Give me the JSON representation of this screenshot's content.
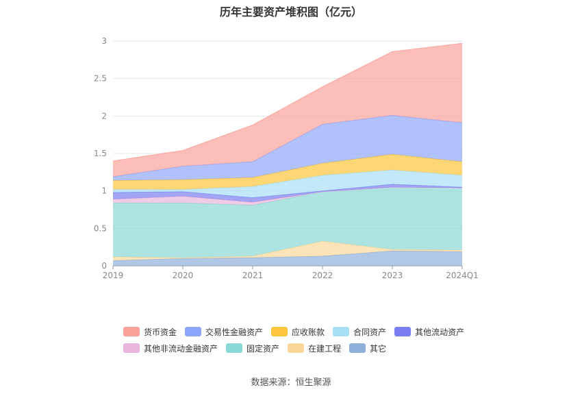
{
  "title": "历年主要资产堆积图（亿元）",
  "source": "数据来源：恒生聚源",
  "chart_data": {
    "type": "area",
    "stacked": true,
    "title": "历年主要资产堆积图（亿元）",
    "categories": [
      "2019",
      "2020",
      "2021",
      "2022",
      "2023",
      "2024Q1"
    ],
    "ylim": [
      0,
      3
    ],
    "yticks": [
      "0",
      "0.5",
      "1",
      "1.5",
      "2",
      "2.5",
      "3"
    ],
    "grid": true,
    "legend_position": "bottom",
    "series": [
      {
        "name": "其它",
        "color": "#8fb0db",
        "values": [
          0.07,
          0.1,
          0.11,
          0.13,
          0.2,
          0.19
        ]
      },
      {
        "name": "在建工程",
        "color": "#fbd89a",
        "values": [
          0.05,
          0.01,
          0.02,
          0.2,
          0.02,
          0.02
        ]
      },
      {
        "name": "固定资产",
        "color": "#8ad8d6",
        "values": [
          0.72,
          0.73,
          0.68,
          0.66,
          0.83,
          0.83
        ]
      },
      {
        "name": "其他非流动金融资产",
        "color": "#e8b6dc",
        "values": [
          0.05,
          0.09,
          0.04,
          0.0,
          0.0,
          0.0
        ]
      },
      {
        "name": "其他流动资产",
        "color": "#7b7ef0",
        "values": [
          0.09,
          0.06,
          0.06,
          0.01,
          0.04,
          0.01
        ]
      },
      {
        "name": "合同资产",
        "color": "#a9def7",
        "values": [
          0.04,
          0.03,
          0.15,
          0.21,
          0.19,
          0.16
        ]
      },
      {
        "name": "应收账款",
        "color": "#fcc53c",
        "values": [
          0.12,
          0.13,
          0.12,
          0.16,
          0.21,
          0.18
        ]
      },
      {
        "name": "交易性金融资产",
        "color": "#8ea6fb",
        "values": [
          0.05,
          0.18,
          0.21,
          0.52,
          0.52,
          0.52
        ]
      },
      {
        "name": "货币资金",
        "color": "#fba39b",
        "values": [
          0.21,
          0.21,
          0.49,
          0.5,
          0.85,
          1.06
        ]
      }
    ]
  },
  "legend": {
    "rows": [
      [
        "货币资金",
        "交易性金融资产",
        "应收账款",
        "合同资产",
        "其他流动资产"
      ],
      [
        "其他非流动金融资产",
        "固定资产",
        "在建工程",
        "其它"
      ]
    ]
  }
}
